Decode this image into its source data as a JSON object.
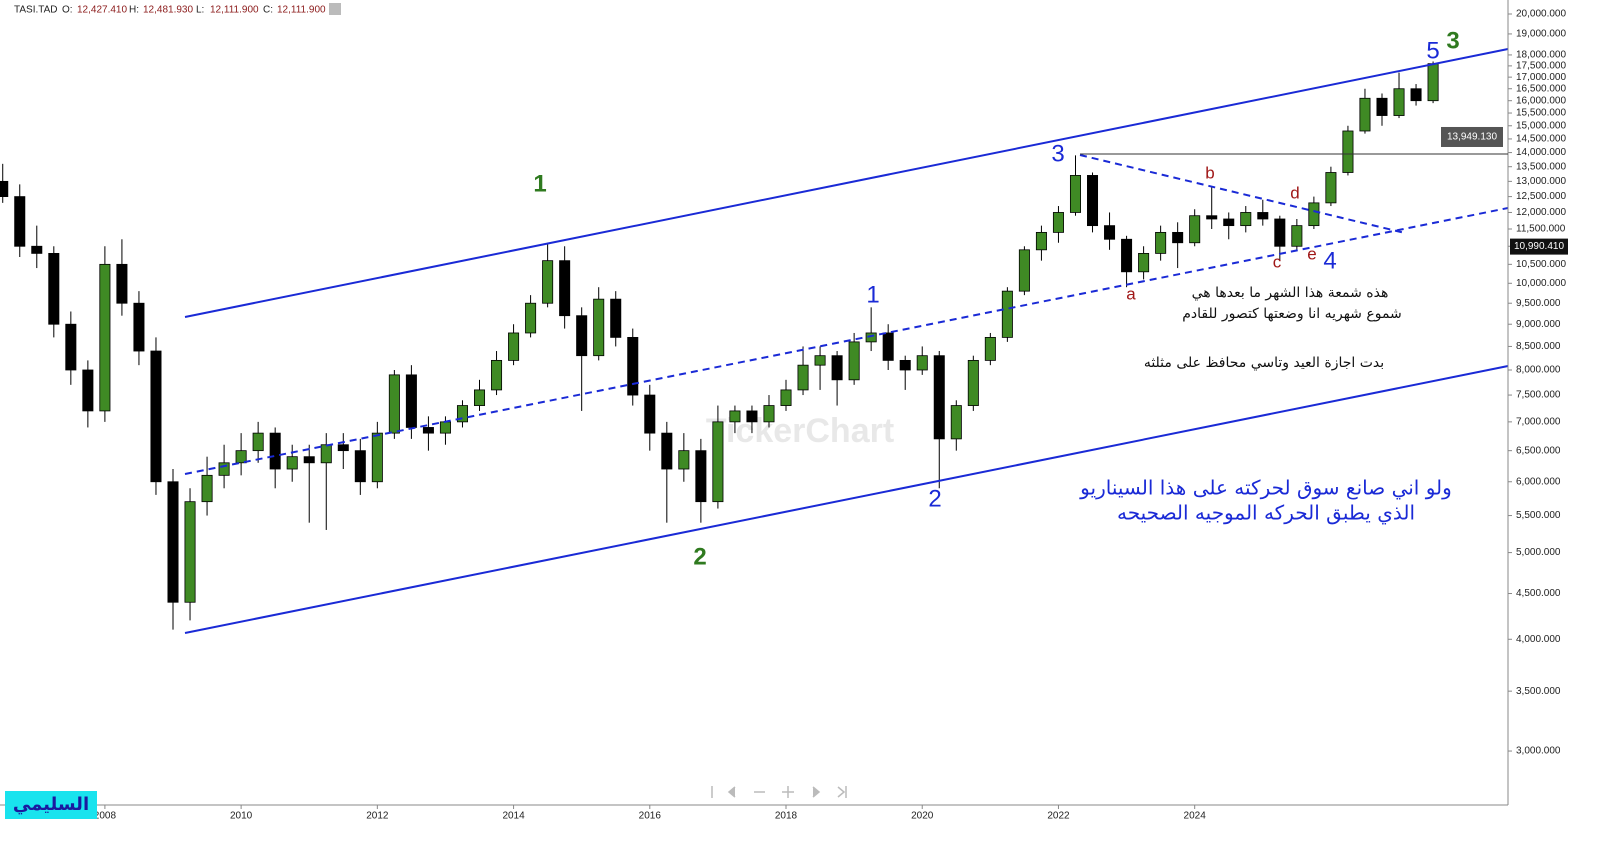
{
  "header": {
    "symbol": "TASI.TAD",
    "fields": [
      {
        "label": "O:",
        "value": "12,427.410"
      },
      {
        "label": "H:",
        "value": "12,481.930"
      },
      {
        "label": "L:",
        "value": "12,111.900"
      },
      {
        "label": "C:",
        "value": "12,111.900"
      }
    ]
  },
  "chart_data": {
    "type": "candlestick",
    "yscale": "log",
    "up_color": "#3f8a24",
    "down_color": "#000000",
    "xlim": [
      2006.46,
      2028.6
    ],
    "xticks": [
      2008,
      2010,
      2012,
      2014,
      2016,
      2018,
      2020,
      2022,
      2024
    ],
    "ylim": [
      2611,
      20734
    ],
    "yticks": [
      {
        "value": 20000,
        "label": "20,000.000"
      },
      {
        "value": 19000,
        "label": "19,000.000"
      },
      {
        "value": 18000,
        "label": "18,000.000"
      },
      {
        "value": 17500,
        "label": "17,500.000"
      },
      {
        "value": 17000,
        "label": "17,000.000"
      },
      {
        "value": 16500,
        "label": "16,500.000"
      },
      {
        "value": 16000,
        "label": "16,000.000"
      },
      {
        "value": 15500,
        "label": "15,500.000"
      },
      {
        "value": 15000,
        "label": "15,000.000"
      },
      {
        "value": 14500,
        "label": "14,500.000"
      },
      {
        "value": 14000,
        "label": "14,000.000"
      },
      {
        "value": 13500,
        "label": "13,500.000"
      },
      {
        "value": 13000,
        "label": "13,000.000"
      },
      {
        "value": 12500,
        "label": "12,500.000"
      },
      {
        "value": 12000,
        "label": "12,000.000"
      },
      {
        "value": 11500,
        "label": "11,500.000"
      },
      {
        "value": 11000,
        "label": "11,000.000"
      },
      {
        "value": 10500,
        "label": "10,500.000"
      },
      {
        "value": 10000,
        "label": "10,000.000"
      },
      {
        "value": 9500,
        "label": "9,500.000"
      },
      {
        "value": 9000,
        "label": "9,000.000"
      },
      {
        "value": 8500,
        "label": "8,500.000"
      },
      {
        "value": 8000,
        "label": "8,000.000"
      },
      {
        "value": 7500,
        "label": "7,500.000"
      },
      {
        "value": 7000,
        "label": "7,000.000"
      },
      {
        "value": 6500,
        "label": "6,500.000"
      },
      {
        "value": 6000,
        "label": "6,000.000"
      },
      {
        "value": 5500,
        "label": "5,500.000"
      },
      {
        "value": 5000,
        "label": "5,000.000"
      },
      {
        "value": 4500,
        "label": "4,500.000"
      },
      {
        "value": 4000,
        "label": "4,000.000"
      },
      {
        "value": 3500,
        "label": "3,500.000"
      },
      {
        "value": 3000,
        "label": "3,000.000"
      }
    ],
    "x": [
      2006.5,
      2006.75,
      2007,
      2007.25,
      2007.5,
      2007.75,
      2008,
      2008.25,
      2008.5,
      2008.75,
      2009,
      2009.25,
      2009.5,
      2009.75,
      2010,
      2010.25,
      2010.5,
      2010.75,
      2011,
      2011.25,
      2011.5,
      2011.75,
      2012,
      2012.25,
      2012.5,
      2012.75,
      2013,
      2013.25,
      2013.5,
      2013.75,
      2014,
      2014.25,
      2014.5,
      2014.75,
      2015,
      2015.25,
      2015.5,
      2015.75,
      2016,
      2016.25,
      2016.5,
      2016.75,
      2017,
      2017.25,
      2017.5,
      2017.75,
      2018,
      2018.25,
      2018.5,
      2018.75,
      2019,
      2019.25,
      2019.5,
      2019.75,
      2020,
      2020.25,
      2020.5,
      2020.75,
      2021,
      2021.25,
      2021.5,
      2021.75,
      2022,
      2022.25,
      2022.5,
      2022.75,
      2023,
      2023.25,
      2023.5,
      2023.75,
      2024,
      2024.25,
      2024.5,
      2024.75,
      2025,
      2025.25,
      2025.5,
      2025.75,
      2026,
      2026.25,
      2026.5,
      2026.75,
      2027,
      2027.25,
      2027.5
    ],
    "open": [
      13000,
      12500,
      11000,
      10800,
      9000,
      8000,
      7200,
      10500,
      9500,
      8400,
      6000,
      4400,
      5700,
      6100,
      6300,
      6500,
      6800,
      6200,
      6400,
      6300,
      6600,
      6500,
      6000,
      6800,
      7900,
      6900,
      6800,
      7000,
      7300,
      7600,
      8200,
      8800,
      9500,
      10600,
      9200,
      8300,
      9600,
      8700,
      7500,
      6800,
      6200,
      6500,
      5700,
      7000,
      7200,
      7000,
      7300,
      7600,
      8100,
      8300,
      7800,
      8600,
      8800,
      8200,
      8000,
      8300,
      6700,
      7300,
      8200,
      8700,
      9800,
      10900,
      11400,
      12000,
      13200,
      11600,
      11200,
      10300,
      10800,
      11400,
      11100,
      11900,
      11800,
      11600,
      12000,
      11800,
      11000,
      11600,
      12300,
      13300,
      14800,
      16100,
      15400,
      16500,
      16000
    ],
    "high": [
      13600,
      12900,
      11600,
      11000,
      9300,
      8200,
      11000,
      11200,
      9800,
      8700,
      6200,
      5900,
      6400,
      6600,
      6800,
      7000,
      6900,
      6600,
      6600,
      6800,
      6800,
      6700,
      7000,
      8000,
      8100,
      7100,
      7100,
      7400,
      7800,
      8400,
      9000,
      9700,
      11100,
      11000,
      9400,
      9900,
      9800,
      8900,
      7700,
      7000,
      6800,
      6700,
      7300,
      7300,
      7300,
      7500,
      7800,
      8500,
      8500,
      8400,
      8800,
      9400,
      9000,
      8300,
      8500,
      8400,
      7400,
      8300,
      8800,
      9900,
      11000,
      11600,
      12200,
      13900,
      13300,
      12000,
      11300,
      11000,
      11600,
      11700,
      12100,
      12800,
      12000,
      12200,
      12400,
      11900,
      11800,
      12500,
      13500,
      15000,
      16500,
      16300,
      17200,
      16700,
      17700
    ],
    "low": [
      12300,
      10700,
      10400,
      8700,
      7700,
      6900,
      7000,
      9200,
      8100,
      5800,
      4100,
      4200,
      5500,
      5900,
      6100,
      6300,
      5900,
      6000,
      5400,
      5300,
      6200,
      5800,
      5900,
      6700,
      6700,
      6500,
      6600,
      6900,
      7200,
      7500,
      8100,
      8700,
      9400,
      8900,
      7200,
      8200,
      8500,
      7300,
      6500,
      5400,
      6000,
      5400,
      5600,
      6800,
      6800,
      6900,
      7200,
      7500,
      7600,
      7300,
      7700,
      8400,
      8000,
      7600,
      7900,
      5900,
      6500,
      7200,
      8100,
      8600,
      9700,
      10600,
      11100,
      11900,
      11400,
      10900,
      9900,
      10100,
      10600,
      10400,
      11000,
      11500,
      11200,
      11400,
      11600,
      10600,
      10900,
      11500,
      12200,
      13200,
      14700,
      15000,
      15300,
      15800,
      15900
    ],
    "close": [
      12500,
      11000,
      10800,
      9000,
      8000,
      7200,
      10500,
      9500,
      8400,
      6000,
      4400,
      5700,
      6100,
      6300,
      6500,
      6800,
      6200,
      6400,
      6300,
      6600,
      6500,
      6000,
      6800,
      7900,
      6900,
      6800,
      7000,
      7300,
      7600,
      8200,
      8800,
      9500,
      10600,
      9200,
      8300,
      9600,
      8700,
      7500,
      6800,
      6200,
      6500,
      5700,
      7000,
      7200,
      7000,
      7300,
      7600,
      8100,
      8300,
      7800,
      8600,
      8800,
      8200,
      8000,
      8300,
      6700,
      7300,
      8200,
      8700,
      9800,
      10900,
      11400,
      12000,
      13200,
      11600,
      11200,
      10300,
      10800,
      11400,
      11100,
      11900,
      11800,
      11600,
      12000,
      11800,
      11000,
      11600,
      12300,
      13300,
      14800,
      16100,
      15400,
      16500,
      16000,
      17600
    ],
    "price_markers": [
      {
        "value": 13949.13,
        "label": "13,949.130"
      },
      {
        "value": 10990.41,
        "label": "10,990.410"
      }
    ],
    "annotations": [
      "1",
      "2",
      "3",
      "1",
      "2",
      "3",
      "4",
      "5",
      "a",
      "b",
      "c",
      "d",
      "e",
      "هذه شمعة هذا الشهر ما بعدها هي",
      "شموع شهريه انا وضعتها كتصور للقادم",
      "بدت اجازة العيد وتاسي محافظ على مثلثه",
      "ولو اني صانع سوق لحركته على هذا السيناريو",
      "الذي يطبق الحركه الموجيه الصحيحه"
    ],
    "watermark": "TickerChart",
    "author": "السليمي"
  }
}
